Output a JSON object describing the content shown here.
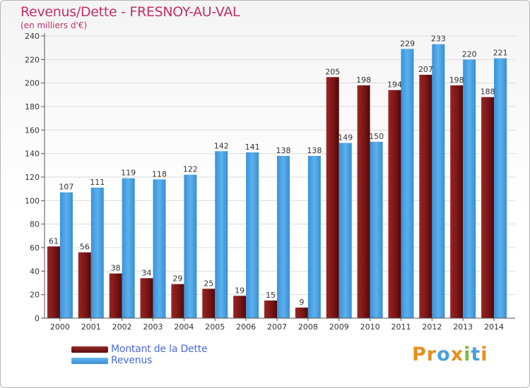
{
  "title": "Revenus/Dette - FRESNOY-AU-VAL",
  "subtitle": "(en milliers d'€)",
  "colors": {
    "dette": "#7a1818",
    "revenus": "#4ea3e6",
    "title": "#c0306a",
    "legend_text": "#4a68e0"
  },
  "legend": [
    {
      "label": "Montant de la Dette",
      "color": "#7a1818"
    },
    {
      "label": "Revenus",
      "color": "#4ea3e6"
    }
  ],
  "brand": {
    "letters": [
      "P",
      "r",
      "o",
      "x",
      "i",
      "t",
      "i"
    ],
    "colors": [
      "#e8901a",
      "#e8901a",
      "#4aa0d8",
      "#e8901a",
      "#7cbf3a",
      "#4aa0d8",
      "#e8901a"
    ]
  },
  "chart_data": {
    "type": "bar",
    "title": "Revenus/Dette - FRESNOY-AU-VAL",
    "subtitle": "(en milliers d'€)",
    "categories": [
      "2000",
      "2001",
      "2002",
      "2003",
      "2004",
      "2005",
      "2006",
      "2007",
      "2008",
      "2009",
      "2010",
      "2011",
      "2012",
      "2013",
      "2014"
    ],
    "series": [
      {
        "name": "Montant de la Dette",
        "values": [
          61,
          56,
          38,
          34,
          29,
          25,
          19,
          15,
          9,
          205,
          198,
          194,
          207,
          198,
          188
        ]
      },
      {
        "name": "Revenus",
        "values": [
          107,
          111,
          119,
          118,
          122,
          142,
          141,
          138,
          138,
          149,
          150,
          229,
          233,
          220,
          221
        ]
      }
    ],
    "ylim": [
      0,
      240
    ],
    "yticks": [
      0,
      20,
      40,
      60,
      80,
      100,
      120,
      140,
      160,
      180,
      200,
      220,
      240
    ],
    "grid": true,
    "legend_position": "bottom-left"
  }
}
